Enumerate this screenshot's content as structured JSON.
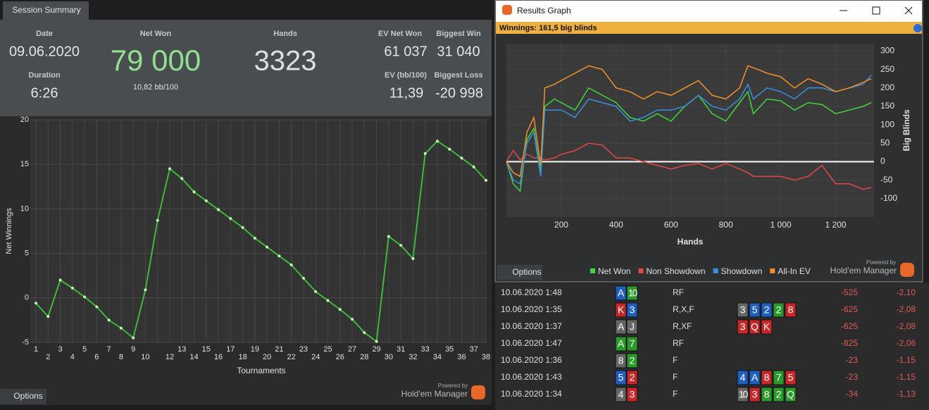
{
  "session_summary": {
    "tab": "Session Summary",
    "date_label": "Date",
    "date": "09.06.2020",
    "duration_label": "Duration",
    "duration": "6:26",
    "net_won_label": "Net Won",
    "net_won": "79 000",
    "bb_per_100": "10,82 bb/100",
    "hands_label": "Hands",
    "hands": "3323",
    "ev_net_won_label": "EV Net Won",
    "ev_net_won": "61 037",
    "ev_bb_label": "EV (bb/100)",
    "ev_bb": "11,39",
    "biggest_win_label": "Biggest Win",
    "biggest_win": "31 040",
    "biggest_loss_label": "Biggest Loss",
    "biggest_loss": "-20 998",
    "options": "Options",
    "powered_by": "Powered by",
    "brand": "Hold'em Manager"
  },
  "chart_data": [
    {
      "type": "line",
      "x_label": "Tournaments",
      "y_label": "Net Winnings",
      "categories": [
        "1",
        "2",
        "3",
        "4",
        "5",
        "6",
        "7",
        "8",
        "9",
        "10",
        null,
        "12",
        "13",
        "14",
        "15",
        "16",
        "17",
        "18",
        "19",
        "20",
        "21",
        "22",
        "23",
        "24",
        "25",
        "26",
        "27",
        "28",
        "29",
        "30",
        "31",
        "32",
        "33",
        "34",
        "35",
        "36",
        "37",
        "38"
      ],
      "values": [
        -0.6,
        -2.1,
        2.0,
        1.1,
        0.1,
        -1.0,
        -2.5,
        -3.4,
        -4.5,
        0.9,
        8.7,
        14.5,
        13.4,
        11.9,
        10.9,
        9.9,
        8.9,
        7.9,
        6.7,
        5.7,
        4.7,
        3.7,
        2.2,
        0.7,
        -0.3,
        -1.3,
        -2.4,
        -3.9,
        -4.9,
        6.9,
        5.9,
        4.4,
        16.2,
        17.6,
        16.7,
        15.7,
        14.7,
        13.2
      ],
      "color": "#3cb93c",
      "marker_color": "#c8f5b4",
      "ylim": [
        -5,
        20
      ],
      "yticks": [
        -5,
        0,
        5,
        10,
        15,
        20
      ],
      "grid": true
    },
    {
      "type": "line",
      "x_label": "Hands",
      "y_label": "Big Blinds",
      "x": [
        0,
        25,
        50,
        75,
        100,
        125,
        140,
        175,
        200,
        250,
        300,
        350,
        400,
        450,
        500,
        550,
        600,
        650,
        700,
        750,
        800,
        850,
        880,
        900,
        950,
        1000,
        1050,
        1100,
        1150,
        1200,
        1250,
        1300,
        1330
      ],
      "series": [
        {
          "name": "Net Won",
          "color": "#3fd63f",
          "values": [
            0,
            -60,
            -80,
            60,
            90,
            -30,
            150,
            170,
            160,
            140,
            200,
            180,
            160,
            120,
            110,
            130,
            110,
            150,
            180,
            130,
            110,
            160,
            190,
            130,
            170,
            165,
            140,
            160,
            155,
            130,
            140,
            150,
            160
          ]
        },
        {
          "name": "Non Showdown",
          "color": "#e04848",
          "values": [
            0,
            30,
            5,
            20,
            10,
            10,
            5,
            10,
            20,
            30,
            50,
            45,
            10,
            10,
            0,
            -10,
            -20,
            -10,
            -5,
            -20,
            -5,
            -20,
            -30,
            -40,
            -40,
            -40,
            -50,
            -40,
            -10,
            -60,
            -60,
            -75,
            -70
          ]
        },
        {
          "name": "Showdown",
          "color": "#3a8fe0",
          "values": [
            0,
            -50,
            -60,
            50,
            80,
            -40,
            140,
            140,
            140,
            120,
            170,
            160,
            150,
            110,
            120,
            140,
            140,
            150,
            180,
            150,
            140,
            170,
            210,
            170,
            200,
            190,
            170,
            200,
            200,
            190,
            200,
            210,
            235
          ]
        },
        {
          "name": "All-In EV",
          "color": "#f0902a",
          "values": [
            0,
            -30,
            -40,
            80,
            120,
            -10,
            200,
            210,
            220,
            240,
            260,
            250,
            200,
            190,
            170,
            190,
            180,
            200,
            220,
            180,
            170,
            200,
            260,
            255,
            240,
            230,
            200,
            225,
            210,
            190,
            200,
            215,
            225
          ]
        }
      ],
      "xlim": [
        0,
        1340
      ],
      "ylim": [
        -150,
        320
      ],
      "xticks": [
        200,
        400,
        600,
        800,
        {
          "value": 1000,
          "label": "1 000"
        },
        {
          "value": 1200,
          "label": "1 200"
        }
      ],
      "yticks": [
        -100,
        -50,
        0,
        50,
        100,
        150,
        200,
        250,
        300
      ],
      "grid": true,
      "zero_line_color": "#ffffff",
      "legend": "bottom"
    }
  ],
  "results_graph": {
    "title": "Results Graph",
    "winnings": "Winnings: 161,5 big blinds",
    "options": "Options",
    "powered_by": "Powered by",
    "brand": "Hold'em Manager"
  },
  "hands_table": {
    "rows": [
      {
        "date": "10.06.2020 1:48",
        "hole": [
          {
            "rank": "A",
            "color": "#1f5fbf"
          },
          {
            "rank": "10",
            "color": "#2a9a2a"
          }
        ],
        "action": "RF",
        "board": [],
        "net": "-525",
        "bb": "-2,10"
      },
      {
        "date": "10.06.2020 1:35",
        "hole": [
          {
            "rank": "K",
            "color": "#c62828"
          },
          {
            "rank": "3",
            "color": "#1f5fbf"
          }
        ],
        "action": "R,X,F",
        "board": [
          {
            "rank": "3",
            "color": "#666666"
          },
          {
            "rank": "5",
            "color": "#1f5fbf"
          },
          {
            "rank": "2",
            "color": "#1f5fbf"
          },
          {
            "rank": "2",
            "color": "#2a9a2a"
          },
          {
            "rank": "8",
            "color": "#c62828"
          }
        ],
        "net": "-625",
        "bb": "-2,08"
      },
      {
        "date": "10.06.2020 1:37",
        "hole": [
          {
            "rank": "A",
            "color": "#666666"
          },
          {
            "rank": "J",
            "color": "#666666"
          }
        ],
        "action": "R,XF",
        "board": [
          {
            "rank": "3",
            "color": "#c62828"
          },
          {
            "rank": "Q",
            "color": "#c62828"
          },
          {
            "rank": "K",
            "color": "#c62828"
          }
        ],
        "net": "-625",
        "bb": "-2,08"
      },
      {
        "date": "10.06.2020 1:47",
        "hole": [
          {
            "rank": "A",
            "color": "#2a9a2a"
          },
          {
            "rank": "7",
            "color": "#2a9a2a"
          }
        ],
        "action": "RF",
        "board": [],
        "net": "-825",
        "bb": "-2,06"
      },
      {
        "date": "10.06.2020 1:36",
        "hole": [
          {
            "rank": "8",
            "color": "#666666"
          },
          {
            "rank": "2",
            "color": "#2a9a2a"
          }
        ],
        "action": "F",
        "board": [],
        "net": "-23",
        "bb": "-1,15"
      },
      {
        "date": "10.06.2020 1:43",
        "hole": [
          {
            "rank": "5",
            "color": "#1f5fbf"
          },
          {
            "rank": "2",
            "color": "#c62828"
          }
        ],
        "action": "F",
        "board": [
          {
            "rank": "4",
            "color": "#1f5fbf"
          },
          {
            "rank": "A",
            "color": "#1f5fbf"
          },
          {
            "rank": "8",
            "color": "#c62828"
          },
          {
            "rank": "7",
            "color": "#2a9a2a"
          },
          {
            "rank": "5",
            "color": "#c62828"
          }
        ],
        "net": "-23",
        "bb": "-1,15"
      },
      {
        "date": "10.06.2020 1:34",
        "hole": [
          {
            "rank": "4",
            "color": "#666666"
          },
          {
            "rank": "3",
            "color": "#c62828"
          }
        ],
        "action": "F",
        "board": [
          {
            "rank": "10",
            "color": "#666666"
          },
          {
            "rank": "3",
            "color": "#c62828"
          },
          {
            "rank": "8",
            "color": "#2a9a2a"
          },
          {
            "rank": "2",
            "color": "#2a9a2a"
          },
          {
            "rank": "Q",
            "color": "#2a9a2a"
          }
        ],
        "net": "-34",
        "bb": "-1,13"
      }
    ]
  }
}
